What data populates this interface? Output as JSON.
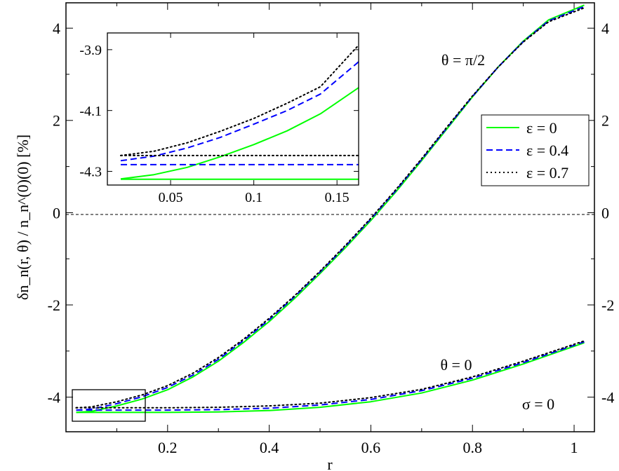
{
  "chart_data": [
    {
      "type": "line",
      "xlabel": "r",
      "ylabel": "δn_n(r, θ) / n_n^(0)(0)   [%]",
      "xlim": [
        0,
        1.04
      ],
      "ylim": [
        -4.75,
        4.55
      ],
      "xticks": [
        0.2,
        0.4,
        0.6,
        0.8,
        1
      ],
      "xtick_labels": [
        "0.2",
        "0.4",
        "0.6",
        "0.8",
        "1"
      ],
      "yticks": [
        4,
        2,
        0,
        -2,
        -4
      ],
      "ytick_labels": [
        "4",
        "2",
        "0",
        "-2",
        "-4"
      ],
      "grid": false,
      "legend_position": "right",
      "annotations": [
        "θ = π/2",
        "θ = 0",
        "σ = 0"
      ],
      "legend": [
        {
          "label": "ε = 0",
          "color": "#00ff00",
          "dash": "solid"
        },
        {
          "label": "ε = 0.4",
          "color": "#0000ff",
          "dash": "dashed"
        },
        {
          "label": "ε = 0.7",
          "color": "#000000",
          "dash": "dotted"
        }
      ],
      "reference_line": {
        "y": 0,
        "style": "dashed"
      },
      "series": [
        {
          "name": "ε = 0",
          "group": "θ = π/2",
          "color": "#00ff00",
          "dash": "solid",
          "x": [
            0.02,
            0.05,
            0.1,
            0.15,
            0.2,
            0.25,
            0.3,
            0.35,
            0.4,
            0.45,
            0.5,
            0.55,
            0.6,
            0.65,
            0.7,
            0.75,
            0.8,
            0.85,
            0.9,
            0.95,
            1.02
          ],
          "y": [
            -4.33,
            -4.31,
            -4.19,
            -4.04,
            -3.84,
            -3.56,
            -3.22,
            -2.81,
            -2.36,
            -1.86,
            -1.32,
            -0.76,
            -0.17,
            0.46,
            1.13,
            1.82,
            2.51,
            3.15,
            3.72,
            4.18,
            4.5
          ]
        },
        {
          "name": "ε = 0.4",
          "group": "θ = π/2",
          "color": "#0000ff",
          "dash": "dashed",
          "x": [
            0.02,
            0.05,
            0.1,
            0.15,
            0.2,
            0.25,
            0.3,
            0.35,
            0.4,
            0.45,
            0.5,
            0.55,
            0.6,
            0.65,
            0.7,
            0.75,
            0.8,
            0.85,
            0.9,
            0.95,
            1.02
          ],
          "y": [
            -4.28,
            -4.26,
            -4.14,
            -3.99,
            -3.79,
            -3.52,
            -3.18,
            -2.77,
            -2.32,
            -1.82,
            -1.29,
            -0.73,
            -0.14,
            0.49,
            1.15,
            1.84,
            2.52,
            3.15,
            3.71,
            4.16,
            4.47
          ]
        },
        {
          "name": "ε = 0.7",
          "group": "θ = π/2",
          "color": "#000000",
          "dash": "dotted",
          "x": [
            0.02,
            0.05,
            0.1,
            0.15,
            0.2,
            0.25,
            0.3,
            0.35,
            0.4,
            0.45,
            0.5,
            0.55,
            0.6,
            0.65,
            0.7,
            0.75,
            0.8,
            0.85,
            0.9,
            0.95,
            1.02
          ],
          "y": [
            -4.23,
            -4.21,
            -4.1,
            -3.95,
            -3.75,
            -3.48,
            -3.14,
            -2.74,
            -2.29,
            -1.8,
            -1.27,
            -0.71,
            -0.12,
            0.51,
            1.17,
            1.86,
            2.53,
            3.15,
            3.7,
            4.14,
            4.44
          ]
        },
        {
          "name": "ε = 0",
          "group": "θ = 0",
          "color": "#00ff00",
          "dash": "solid",
          "x": [
            0.02,
            0.1,
            0.2,
            0.3,
            0.4,
            0.5,
            0.6,
            0.7,
            0.8,
            0.9,
            1.02
          ],
          "y": [
            -4.33,
            -4.33,
            -4.33,
            -4.32,
            -4.29,
            -4.22,
            -4.1,
            -3.91,
            -3.63,
            -3.28,
            -2.82
          ]
        },
        {
          "name": "ε = 0.4",
          "group": "θ = 0",
          "color": "#0000ff",
          "dash": "dashed",
          "x": [
            0.02,
            0.1,
            0.2,
            0.3,
            0.4,
            0.5,
            0.6,
            0.7,
            0.8,
            0.9,
            1.02
          ],
          "y": [
            -4.28,
            -4.28,
            -4.28,
            -4.27,
            -4.24,
            -4.17,
            -4.05,
            -3.86,
            -3.59,
            -3.25,
            -2.8
          ]
        },
        {
          "name": "ε = 0.7",
          "group": "θ = 0",
          "color": "#000000",
          "dash": "dotted",
          "x": [
            0.02,
            0.1,
            0.2,
            0.3,
            0.4,
            0.5,
            0.6,
            0.7,
            0.8,
            0.9,
            1.02
          ],
          "y": [
            -4.23,
            -4.23,
            -4.23,
            -4.22,
            -4.19,
            -4.13,
            -4.01,
            -3.83,
            -3.56,
            -3.22,
            -2.78
          ]
        }
      ]
    },
    {
      "type": "line",
      "inset": true,
      "xlim": [
        0.012,
        0.163
      ],
      "ylim": [
        -4.345,
        -3.845
      ],
      "xticks": [
        0.05,
        0.1,
        0.15
      ],
      "xtick_labels": [
        "0.05",
        "0.1",
        "0.15"
      ],
      "yticks": [
        -3.9,
        -4.1,
        -4.3
      ],
      "ytick_labels": [
        "-3.9",
        "-4.1",
        "-4.3"
      ],
      "grid": false,
      "series": [
        {
          "name": "ε = 0",
          "group": "θ = π/2",
          "color": "#00ff00",
          "dash": "solid",
          "x": [
            0.02,
            0.04,
            0.06,
            0.08,
            0.1,
            0.12,
            0.14,
            0.163
          ],
          "y": [
            -4.325,
            -4.311,
            -4.287,
            -4.252,
            -4.212,
            -4.167,
            -4.111,
            -4.025
          ]
        },
        {
          "name": "ε = 0.4",
          "group": "θ = π/2",
          "color": "#0000ff",
          "dash": "dashed",
          "x": [
            0.02,
            0.04,
            0.06,
            0.08,
            0.1,
            0.12,
            0.14,
            0.163
          ],
          "y": [
            -4.265,
            -4.25,
            -4.223,
            -4.188,
            -4.145,
            -4.1,
            -4.046,
            -3.94
          ]
        },
        {
          "name": "ε = 0.7",
          "group": "θ = π/2",
          "color": "#000000",
          "dash": "dotted",
          "x": [
            0.02,
            0.04,
            0.06,
            0.08,
            0.1,
            0.12,
            0.14,
            0.163
          ],
          "y": [
            -4.248,
            -4.234,
            -4.206,
            -4.168,
            -4.126,
            -4.076,
            -4.022,
            -3.885
          ]
        },
        {
          "name": "ε = 0",
          "group": "θ = 0",
          "color": "#00ff00",
          "dash": "solid",
          "x": [
            0.02,
            0.163
          ],
          "y": [
            -4.326,
            -4.326
          ]
        },
        {
          "name": "ε = 0.4",
          "group": "θ = 0",
          "color": "#0000ff",
          "dash": "dashed",
          "x": [
            0.02,
            0.163
          ],
          "y": [
            -4.278,
            -4.278
          ]
        },
        {
          "name": "ε = 0.7",
          "group": "θ = 0",
          "color": "#000000",
          "dash": "dotted",
          "x": [
            0.02,
            0.163
          ],
          "y": [
            -4.248,
            -4.248
          ]
        }
      ]
    }
  ]
}
